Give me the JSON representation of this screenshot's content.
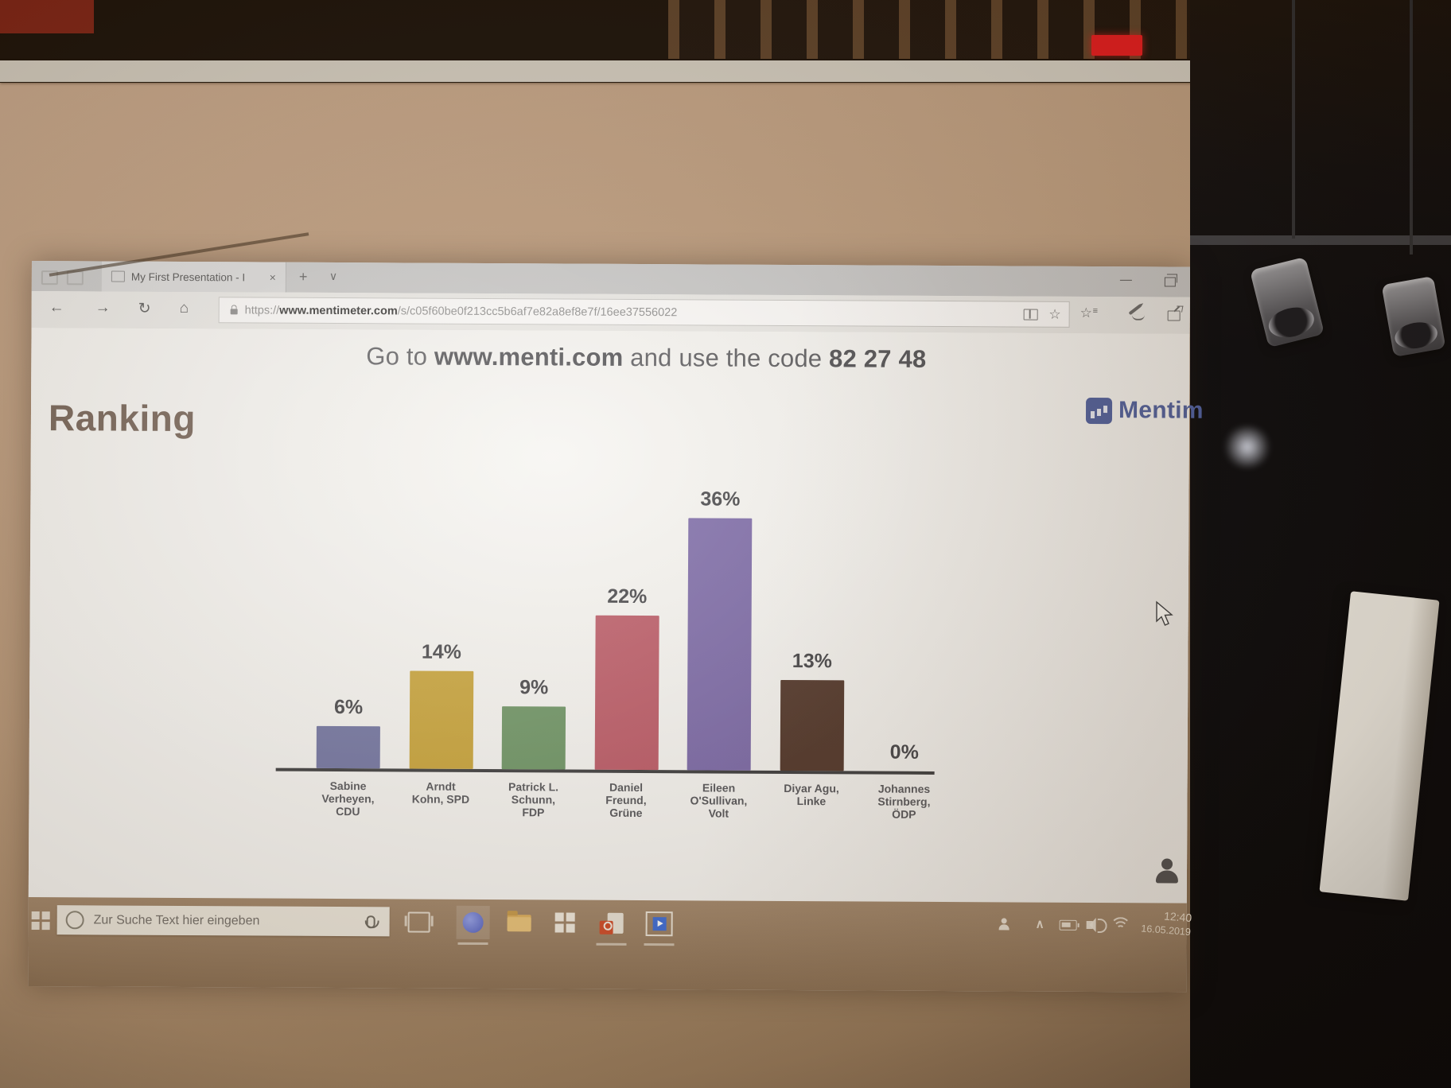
{
  "browser": {
    "tab": {
      "title": "My First Presentation - I"
    },
    "address": {
      "scheme": "https://",
      "host": "www.mentimeter.com",
      "path": "/s/c05f60be0f213cc5b6af7e82a8ef8e7f/16ee37556022"
    }
  },
  "icons": {
    "back": "←",
    "forward": "→",
    "refresh": "↻",
    "home": "⌂",
    "favorite_star": "☆",
    "hub_star": "☆",
    "hub_lines": "≡",
    "close": "×",
    "new_tab": "+",
    "tab_chevron": "∨",
    "minimize": "—",
    "tray_chevron": "∧"
  },
  "slide": {
    "heading": {
      "prefix": "Go to ",
      "site": "www.menti.com",
      "middle": " and use the code ",
      "code": "82 27 48"
    },
    "title": "Ranking",
    "brand": "Mentim",
    "brand_color": "#4a5b9c"
  },
  "chart_data": {
    "type": "bar",
    "title": "Ranking",
    "categories": [
      [
        "Sabine",
        "Verheyen,",
        "CDU"
      ],
      [
        "Arndt",
        "Kohn, SPD"
      ],
      [
        "Patrick L.",
        "Schunn,",
        "FDP"
      ],
      [
        "Daniel",
        "Freund,",
        "Grüne"
      ],
      [
        "Eileen",
        "O'Sullivan,",
        "Volt"
      ],
      [
        "Diyar Agu,",
        "Linke"
      ],
      [
        "Johannes",
        "Stirnberg,",
        "ÖDP"
      ]
    ],
    "values": [
      6,
      14,
      9,
      22,
      36,
      13,
      0
    ],
    "value_labels": [
      "6%",
      "14%",
      "9%",
      "22%",
      "36%",
      "13%",
      "0%"
    ],
    "colors": [
      "#7073a1",
      "#c8a337",
      "#6c9464",
      "#bb5966",
      "#7b69a8",
      "#503529",
      "transparent"
    ],
    "ylim": [
      0,
      40
    ],
    "xlabel": "",
    "ylabel": "",
    "grid": false,
    "legend": false
  },
  "taskbar": {
    "search_placeholder": "Zur Suche Text hier eingeben",
    "clock_time": "12:40",
    "clock_date": "16.05.2019"
  }
}
